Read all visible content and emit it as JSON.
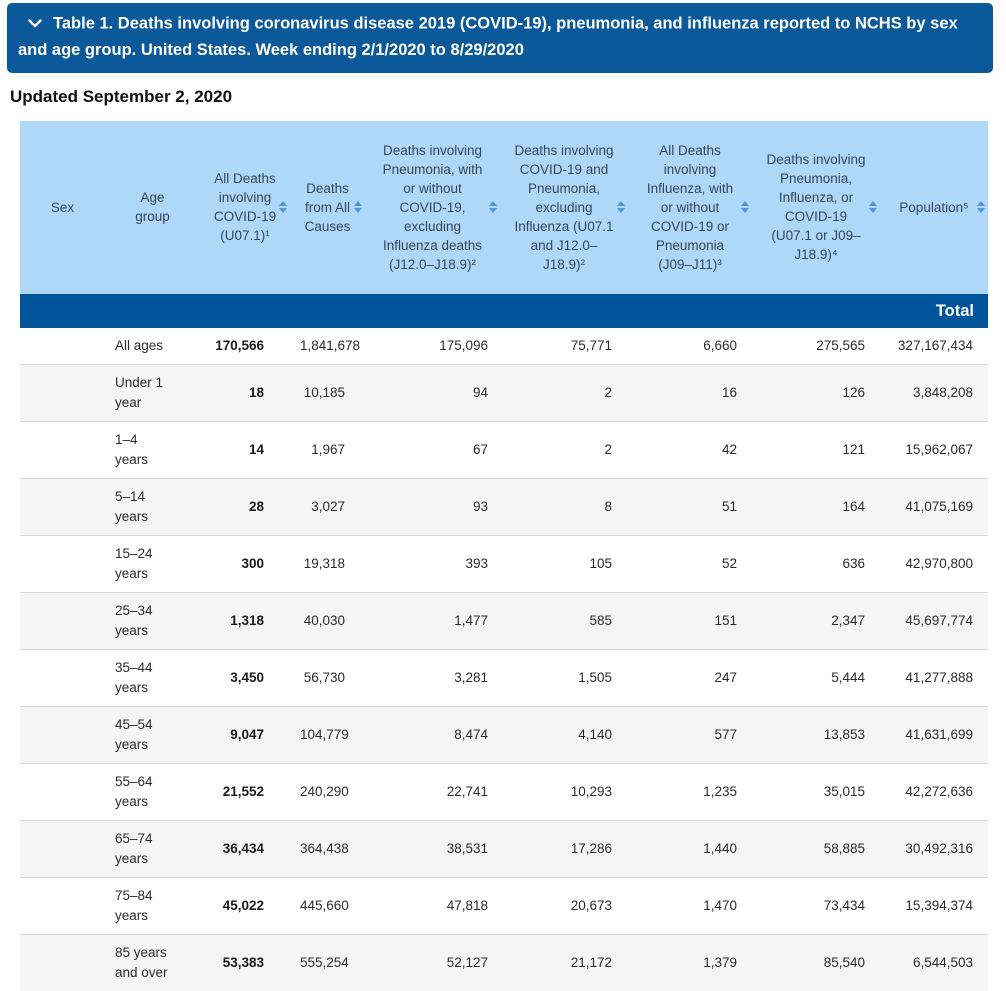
{
  "title_bar": {
    "collapse_icon": "chevron-down",
    "title": "Table 1. Deaths involving coronavirus disease 2019 (COVID-19), pneumonia, and influenza reported to NCHS by sex and age group. United States. Week ending 2/1/2020 to 8/29/2020"
  },
  "updated_label": "Updated September 2, 2020",
  "table": {
    "section_label": "Total",
    "columns": [
      {
        "label": "Sex",
        "sortable": false
      },
      {
        "label": "Age group",
        "sortable": false
      },
      {
        "label": "All Deaths involving COVID-19 (U07.1)¹",
        "sortable": true
      },
      {
        "label": "Deaths from All Causes",
        "sortable": true
      },
      {
        "label": "Deaths involving Pneumonia, with or without COVID-19, excluding Influenza deaths (J12.0–J18.9)²",
        "sortable": true
      },
      {
        "label": "Deaths involving COVID-19 and Pneumonia, excluding Influenza (U07.1 and J12.0–J18.9)²",
        "sortable": true
      },
      {
        "label": "All Deaths involving Influenza, with or without COVID-19 or Pneumonia (J09–J11)³",
        "sortable": true
      },
      {
        "label": "Deaths involving Pneumonia, Influenza, or COVID-19 (U07.1 or J09–J18.9)⁴",
        "sortable": true
      },
      {
        "label": "Population⁵",
        "sortable": true
      }
    ],
    "rows": [
      {
        "sex": "",
        "age_group": "All ages",
        "values": [
          "170,566",
          "1,841,678",
          "175,096",
          "75,771",
          "6,660",
          "275,565",
          "327,167,434"
        ]
      },
      {
        "sex": "",
        "age_group": "Under 1 year",
        "values": [
          "18",
          "10,185",
          "94",
          "2",
          "16",
          "126",
          "3,848,208"
        ]
      },
      {
        "sex": "",
        "age_group": "1–4 years",
        "values": [
          "14",
          "1,967",
          "67",
          "2",
          "42",
          "121",
          "15,962,067"
        ]
      },
      {
        "sex": "",
        "age_group": "5–14 years",
        "values": [
          "28",
          "3,027",
          "93",
          "8",
          "51",
          "164",
          "41,075,169"
        ]
      },
      {
        "sex": "",
        "age_group": "15–24 years",
        "values": [
          "300",
          "19,318",
          "393",
          "105",
          "52",
          "636",
          "42,970,800"
        ]
      },
      {
        "sex": "",
        "age_group": "25–34 years",
        "values": [
          "1,318",
          "40,030",
          "1,477",
          "585",
          "151",
          "2,347",
          "45,697,774"
        ]
      },
      {
        "sex": "",
        "age_group": "35–44 years",
        "values": [
          "3,450",
          "56,730",
          "3,281",
          "1,505",
          "247",
          "5,444",
          "41,277,888"
        ]
      },
      {
        "sex": "",
        "age_group": "45–54 years",
        "values": [
          "9,047",
          "104,779",
          "8,474",
          "4,140",
          "577",
          "13,853",
          "41,631,699"
        ]
      },
      {
        "sex": "",
        "age_group": "55–64 years",
        "values": [
          "21,552",
          "240,290",
          "22,741",
          "10,293",
          "1,235",
          "35,015",
          "42,272,636"
        ]
      },
      {
        "sex": "",
        "age_group": "65–74 years",
        "values": [
          "36,434",
          "364,438",
          "38,531",
          "17,286",
          "1,440",
          "58,885",
          "30,492,316"
        ]
      },
      {
        "sex": "",
        "age_group": "75–84 years",
        "values": [
          "45,022",
          "445,660",
          "47,818",
          "20,673",
          "1,470",
          "73,434",
          "15,394,374"
        ]
      },
      {
        "sex": "",
        "age_group": "85 years and over",
        "values": [
          "53,383",
          "555,254",
          "52,127",
          "21,172",
          "1,379",
          "85,540",
          "6,544,503"
        ]
      }
    ]
  },
  "colors": {
    "title_bar_bg": "#0b5998",
    "section_bg": "#00549c",
    "header_bg": "#aed7f8",
    "header_text": "#33475a",
    "sort_icon": "#4f94d6",
    "row_alt_bg": "#f5f5f5",
    "row_border": "#d6d6d6",
    "body_text": "#2b2b2b"
  }
}
